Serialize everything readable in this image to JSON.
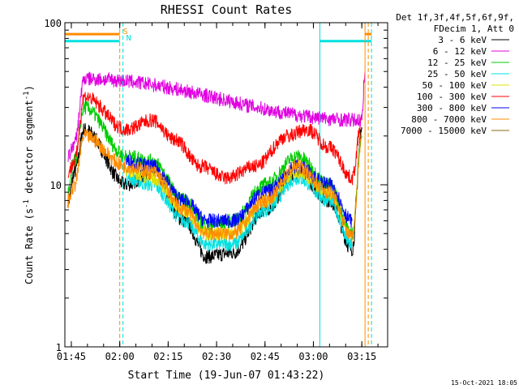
{
  "chart_data": {
    "type": "line",
    "title": "RHESSI Count Rates",
    "xlabel": "Start Time (19-Jun-07 01:43:22)",
    "ylabel": "Count Rate (s",
    "ylabel_sup": "-1",
    "ylabel_mid": " detector segment",
    "ylabel_end": ")",
    "y_scale": "log",
    "ylim": [
      1,
      100
    ],
    "xlim": [
      "01:43",
      "03:23"
    ],
    "y_ticks": [
      {
        "value": 1,
        "label": "1"
      },
      {
        "value": 10,
        "label": "10"
      },
      {
        "value": 100,
        "label": "100"
      }
    ],
    "x_ticks": [
      {
        "time": "01:45",
        "label": "01:45"
      },
      {
        "time": "02:00",
        "label": "02:00"
      },
      {
        "time": "02:15",
        "label": "02:15"
      },
      {
        "time": "02:30",
        "label": "02:30"
      },
      {
        "time": "02:45",
        "label": "02:45"
      },
      {
        "time": "03:00",
        "label": "03:00"
      },
      {
        "time": "03:15",
        "label": "03:15"
      }
    ],
    "legend": {
      "header": [
        "Det 1f,3f,4f,5f,6f,9f,",
        "FDecim 1, Att 0"
      ],
      "placement": "right"
    },
    "series": [
      {
        "name": "3 - 6 keV",
        "color": "#000000",
        "x": [
          "01:44",
          "01:46",
          "01:49",
          "02:02",
          "02:10",
          "02:20",
          "02:27",
          "02:35",
          "02:45",
          "02:55",
          "03:05",
          "03:12",
          "03:15"
        ],
        "y": [
          8,
          12,
          22,
          10,
          12,
          6,
          3.6,
          3.8,
          7,
          12,
          8,
          4.0,
          22
        ]
      },
      {
        "name": "6 - 12 keV",
        "color": "#e000e0",
        "x": [
          "01:44",
          "01:46",
          "01:49",
          "03:15",
          "03:16"
        ],
        "y": [
          15,
          18,
          45,
          25,
          50
        ]
      },
      {
        "name": "12 - 25 keV",
        "color": "#00cc00",
        "x": [
          "01:44",
          "01:46",
          "01:49",
          "02:02",
          "02:10",
          "02:20",
          "02:27",
          "02:35",
          "02:45",
          "02:55",
          "03:05",
          "03:12",
          "03:15"
        ],
        "y": [
          9,
          14,
          30,
          15,
          14,
          8,
          5.6,
          6,
          10,
          15,
          10,
          5,
          20
        ]
      },
      {
        "name": "25 - 50 keV",
        "color": "#00e0e0",
        "x": [
          "02:02",
          "02:10",
          "02:20",
          "02:27",
          "02:35",
          "02:45",
          "02:55",
          "03:05",
          "03:12"
        ],
        "y": [
          11,
          10,
          6,
          4.3,
          4.3,
          7,
          11,
          8,
          4.2
        ]
      },
      {
        "name": "50 - 100 keV",
        "color": "#e0e000",
        "x": [
          "02:02",
          "02:10",
          "02:20",
          "02:27",
          "02:35",
          "02:45",
          "02:55",
          "03:05",
          "03:12"
        ],
        "y": [
          12,
          11,
          7,
          5,
          5,
          8,
          12,
          9,
          5
        ]
      },
      {
        "name": "100 - 300 keV",
        "color": "#ff0000",
        "x": [
          "01:44",
          "01:46",
          "01:49",
          "02:02",
          "02:10",
          "02:17",
          "02:25",
          "02:33",
          "02:42",
          "02:52",
          "02:58",
          "03:05",
          "03:12",
          "03:15"
        ],
        "y": [
          12,
          14,
          35,
          22,
          25,
          19,
          13,
          11,
          13,
          20,
          22,
          17,
          11,
          25
        ]
      },
      {
        "name": "300 - 800 keV",
        "color": "#0000ff",
        "x": [
          "02:02",
          "02:10",
          "02:20",
          "02:27",
          "02:35",
          "02:45",
          "02:55",
          "03:05",
          "03:12"
        ],
        "y": [
          14,
          13,
          8,
          6,
          6,
          9,
          13,
          10,
          6
        ]
      },
      {
        "name": "800 - 7000 keV",
        "color": "#ff8c00",
        "x": [
          "01:44",
          "01:46",
          "01:49",
          "02:02",
          "02:10",
          "02:20",
          "02:27",
          "02:35",
          "02:45",
          "02:55",
          "03:05",
          "03:12",
          "03:15"
        ],
        "y": [
          8,
          10,
          20,
          13,
          12,
          7,
          5,
          5,
          8,
          13,
          9,
          4.8,
          20
        ]
      },
      {
        "name": "7000 - 15000 keV",
        "color": "#8b6914",
        "x": [],
        "y": []
      }
    ],
    "segments": [
      {
        "from": "01:43",
        "to": "02:00",
        "y": 85,
        "color": "#ff8c00"
      },
      {
        "from": "03:16",
        "to": "03:18",
        "y": 85,
        "color": "#ff8c00"
      },
      {
        "from": "01:43",
        "to": "02:00",
        "y": 77,
        "color": "#00e0e0"
      },
      {
        "from": "03:02",
        "to": "03:18",
        "y": 77,
        "color": "#00e0e0"
      }
    ],
    "markers": [
      {
        "time": "01:43",
        "style": "solid",
        "color": "#00e0e0"
      },
      {
        "time": "02:00",
        "style": "dashed",
        "color": "#ff8c00",
        "label": "S"
      },
      {
        "time": "02:01",
        "style": "dashed",
        "color": "#00e0e0",
        "label": "N"
      },
      {
        "time": "03:02",
        "style": "solid",
        "color": "#00e0e0"
      },
      {
        "time": "03:16",
        "style": "solid",
        "color": "#ff8c00"
      },
      {
        "time": "03:17",
        "style": "dashed",
        "color": "#ff8c00"
      },
      {
        "time": "03:18",
        "style": "dashed",
        "color": "#00e0e0"
      }
    ]
  },
  "footer_timestamp": "15-Oct-2021 18:05"
}
